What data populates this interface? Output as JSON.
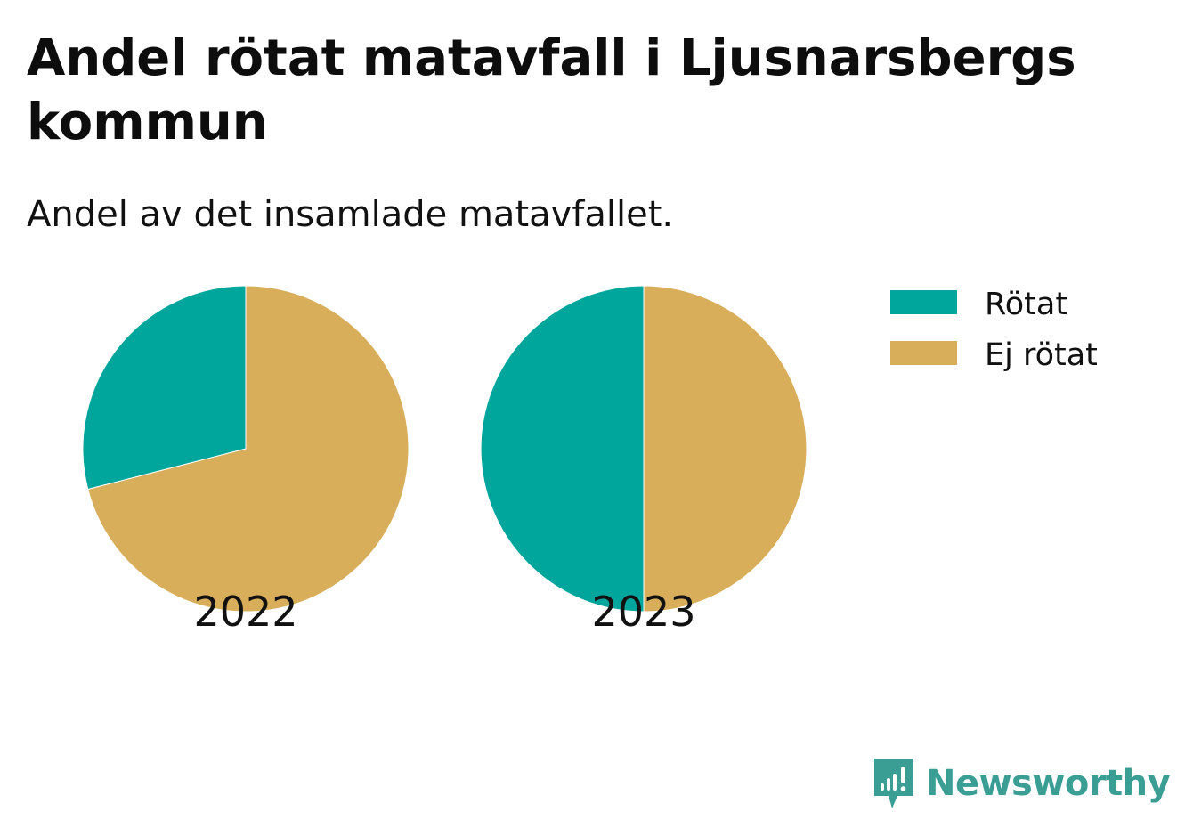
{
  "chart_data": {
    "type": "pie",
    "title": "Andel rötat matavfall i Ljusnarsbergs kommun",
    "subtitle": "Andel av det insamlade matavfallet.",
    "series": [
      {
        "name": "Rötat",
        "color": "#00a59b"
      },
      {
        "name": "Ej rötat",
        "color": "#d9ae5b"
      }
    ],
    "pies": [
      {
        "label": "2022",
        "values": [
          29,
          71
        ]
      },
      {
        "label": "2023",
        "values": [
          50,
          50
        ]
      }
    ],
    "legend": "top-right"
  },
  "brand": {
    "name": "Newsworthy",
    "icon": "newsworthy-logo-icon",
    "color": "#3a9e95"
  }
}
